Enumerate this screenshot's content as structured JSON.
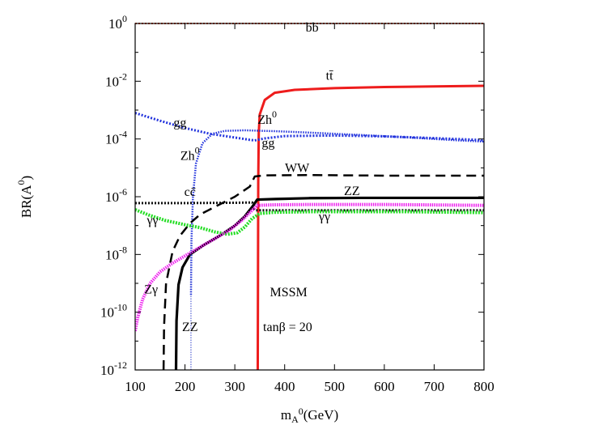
{
  "chart_data": {
    "type": "line",
    "title": "",
    "xlabel": "m_A0(GeV)",
    "xlabel_parts": {
      "base": "m",
      "sub": "A",
      "sup": "0",
      "rest": "(GeV)"
    },
    "ylabel": "BR(A0)",
    "ylabel_parts": {
      "base": "BR(A",
      "sup": "0",
      "rest": ")"
    },
    "xlim": [
      100,
      800
    ],
    "ylim_log10": [
      -12,
      0
    ],
    "yscale": "log",
    "grid": false,
    "x_ticks": [
      100,
      200,
      300,
      400,
      500,
      600,
      700,
      800
    ],
    "x_tick_labels": [
      "100",
      "200",
      "300",
      "400",
      "500",
      "600",
      "700",
      "800"
    ],
    "y_ticks_log10": [
      0,
      -2,
      -4,
      -6,
      -8,
      -10,
      -12
    ],
    "y_tick_labels": [
      {
        "base": "10",
        "exp": "0"
      },
      {
        "base": "10",
        "exp": "-2"
      },
      {
        "base": "10",
        "exp": "-4"
      },
      {
        "base": "10",
        "exp": "-6"
      },
      {
        "base": "10",
        "exp": "-8"
      },
      {
        "base": "10",
        "exp": "-10"
      },
      {
        "base": "10",
        "exp": "-12"
      }
    ],
    "series": [
      {
        "key": "bb",
        "color": "#e8541c",
        "dash": "2,2",
        "width": 2,
        "points": [
          [
            100,
            0
          ],
          [
            800,
            0
          ]
        ]
      },
      {
        "key": "tt",
        "color": "#ee1c1c",
        "dash": "",
        "width": 3,
        "points": [
          [
            346,
            -12
          ],
          [
            347,
            -5.5
          ],
          [
            348,
            -3.8
          ],
          [
            350,
            -3.15
          ],
          [
            360,
            -2.65
          ],
          [
            380,
            -2.4
          ],
          [
            420,
            -2.3
          ],
          [
            500,
            -2.24
          ],
          [
            600,
            -2.2
          ],
          [
            700,
            -2.18
          ],
          [
            800,
            -2.16
          ]
        ]
      },
      {
        "key": "Zh0",
        "color": "#2233dd",
        "dash": "1.5,1.5",
        "width": 2.5,
        "points": [
          [
            212,
            -9.4
          ],
          [
            213,
            -7.5
          ],
          [
            216,
            -6.0
          ],
          [
            222,
            -4.85
          ],
          [
            235,
            -4.15
          ],
          [
            255,
            -3.82
          ],
          [
            280,
            -3.72
          ],
          [
            320,
            -3.7
          ],
          [
            380,
            -3.73
          ],
          [
            450,
            -3.78
          ],
          [
            550,
            -3.86
          ],
          [
            650,
            -3.95
          ],
          [
            750,
            -4.05
          ],
          [
            800,
            -4.09
          ]
        ]
      },
      {
        "key": "gg",
        "color": "#2233dd",
        "dash": "2,2",
        "width": 3,
        "points": [
          [
            100,
            -3.1
          ],
          [
            150,
            -3.37
          ],
          [
            200,
            -3.62
          ],
          [
            250,
            -3.82
          ],
          [
            300,
            -3.95
          ],
          [
            330,
            -4.03
          ],
          [
            340,
            -4.05
          ],
          [
            360,
            -3.98
          ],
          [
            400,
            -3.9
          ],
          [
            500,
            -3.88
          ],
          [
            600,
            -3.91
          ],
          [
            700,
            -3.97
          ],
          [
            800,
            -4.04
          ]
        ]
      },
      {
        "key": "cc",
        "color": "#111111",
        "dash": "2,2",
        "width": 3,
        "points": [
          [
            100,
            -6.22
          ],
          [
            200,
            -6.22
          ],
          [
            300,
            -6.21
          ],
          [
            335,
            -6.2
          ],
          [
            338,
            -6.4
          ],
          [
            342,
            -6.47
          ],
          [
            400,
            -6.47
          ],
          [
            600,
            -6.47
          ],
          [
            800,
            -6.47
          ]
        ]
      },
      {
        "key": "WW",
        "color": "#000000",
        "dash": "12,7",
        "width": 2.5,
        "points": [
          [
            157,
            -12
          ],
          [
            158,
            -10.5
          ],
          [
            162,
            -9.0
          ],
          [
            175,
            -7.9
          ],
          [
            190,
            -7.35
          ],
          [
            210,
            -6.92
          ],
          [
            230,
            -6.62
          ],
          [
            260,
            -6.35
          ],
          [
            300,
            -6.0
          ],
          [
            330,
            -5.65
          ],
          [
            340,
            -5.3
          ],
          [
            360,
            -5.26
          ],
          [
            450,
            -5.25
          ],
          [
            600,
            -5.27
          ],
          [
            800,
            -5.27
          ]
        ]
      },
      {
        "key": "ZZ",
        "color": "#000000",
        "dash": "",
        "width": 3.2,
        "points": [
          [
            182,
            -12
          ],
          [
            183,
            -10.3
          ],
          [
            187,
            -9.05
          ],
          [
            195,
            -8.45
          ],
          [
            210,
            -8.0
          ],
          [
            240,
            -7.65
          ],
          [
            270,
            -7.35
          ],
          [
            300,
            -7.0
          ],
          [
            320,
            -6.68
          ],
          [
            335,
            -6.35
          ],
          [
            345,
            -6.1
          ],
          [
            380,
            -6.08
          ],
          [
            450,
            -6.05
          ],
          [
            550,
            -6.04
          ],
          [
            650,
            -6.04
          ],
          [
            800,
            -6.04
          ]
        ]
      },
      {
        "key": "gaga",
        "color": "#22dd22",
        "dash": "2,1.5",
        "width": 4,
        "points": [
          [
            100,
            -6.45
          ],
          [
            130,
            -6.65
          ],
          [
            160,
            -6.82
          ],
          [
            200,
            -6.97
          ],
          [
            230,
            -7.07
          ],
          [
            260,
            -7.22
          ],
          [
            285,
            -7.3
          ],
          [
            305,
            -7.25
          ],
          [
            320,
            -7.05
          ],
          [
            335,
            -6.75
          ],
          [
            350,
            -6.58
          ],
          [
            380,
            -6.54
          ],
          [
            450,
            -6.52
          ],
          [
            550,
            -6.52
          ],
          [
            650,
            -6.52
          ],
          [
            800,
            -6.55
          ]
        ]
      },
      {
        "key": "Zga",
        "color": "#ee22ee",
        "dash": "1.5,1.2",
        "width": 4,
        "points": [
          [
            100,
            -10.65
          ],
          [
            105,
            -10.2
          ],
          [
            115,
            -9.55
          ],
          [
            130,
            -9.0
          ],
          [
            150,
            -8.6
          ],
          [
            175,
            -8.3
          ],
          [
            200,
            -8.05
          ],
          [
            230,
            -7.75
          ],
          [
            260,
            -7.45
          ],
          [
            290,
            -7.15
          ],
          [
            315,
            -6.8
          ],
          [
            330,
            -6.55
          ],
          [
            345,
            -6.3
          ],
          [
            380,
            -6.28
          ],
          [
            450,
            -6.27
          ],
          [
            600,
            -6.27
          ],
          [
            800,
            -6.3
          ]
        ]
      },
      {
        "key": "guide",
        "color": "#3344cc",
        "dash": "1.5,1.5",
        "width": 1,
        "points": [
          [
            212,
            -12
          ],
          [
            212,
            -7.5
          ]
        ]
      }
    ],
    "annotations": [
      {
        "key": "bb",
        "text": "bb",
        "x": 455,
        "y_log10": -0.28
      },
      {
        "key": "tt",
        "text": "tt̄",
        "x": 490,
        "y_log10": -1.95
      },
      {
        "key": "Zh0_right",
        "text": "Zh",
        "sup": "0",
        "x": 365,
        "y_log10": -3.48
      },
      {
        "key": "gg_left",
        "text": "gg",
        "x": 190,
        "y_log10": -3.58
      },
      {
        "key": "gg_right",
        "text": "gg",
        "x": 367,
        "y_log10": -4.28
      },
      {
        "key": "Zh0_left",
        "text": "Zh",
        "sup": "0",
        "x": 210,
        "y_log10": -4.72
      },
      {
        "key": "WW",
        "text": "WW",
        "x": 425,
        "y_log10": -5.15
      },
      {
        "key": "cc",
        "text": "cc̄",
        "x": 210,
        "y_log10": -5.97
      },
      {
        "key": "ZZ_right",
        "text": "ZZ",
        "x": 535,
        "y_log10": -5.95
      },
      {
        "key": "gaga_left",
        "text": "γγ",
        "x": 135,
        "y_log10": -6.95
      },
      {
        "key": "gaga_right",
        "text": "γγ",
        "x": 480,
        "y_log10": -6.83
      },
      {
        "key": "Zga",
        "text": "Zγ",
        "x": 132,
        "y_log10": -9.35
      },
      {
        "key": "ZZ_left",
        "text": "ZZ",
        "x": 210,
        "y_log10": -10.65
      },
      {
        "key": "mssm",
        "text": "MSSM",
        "x": 408,
        "y_log10": -9.45
      },
      {
        "key": "tanb",
        "text": "tanβ = 20",
        "x": 406,
        "y_log10": -10.65
      }
    ]
  }
}
